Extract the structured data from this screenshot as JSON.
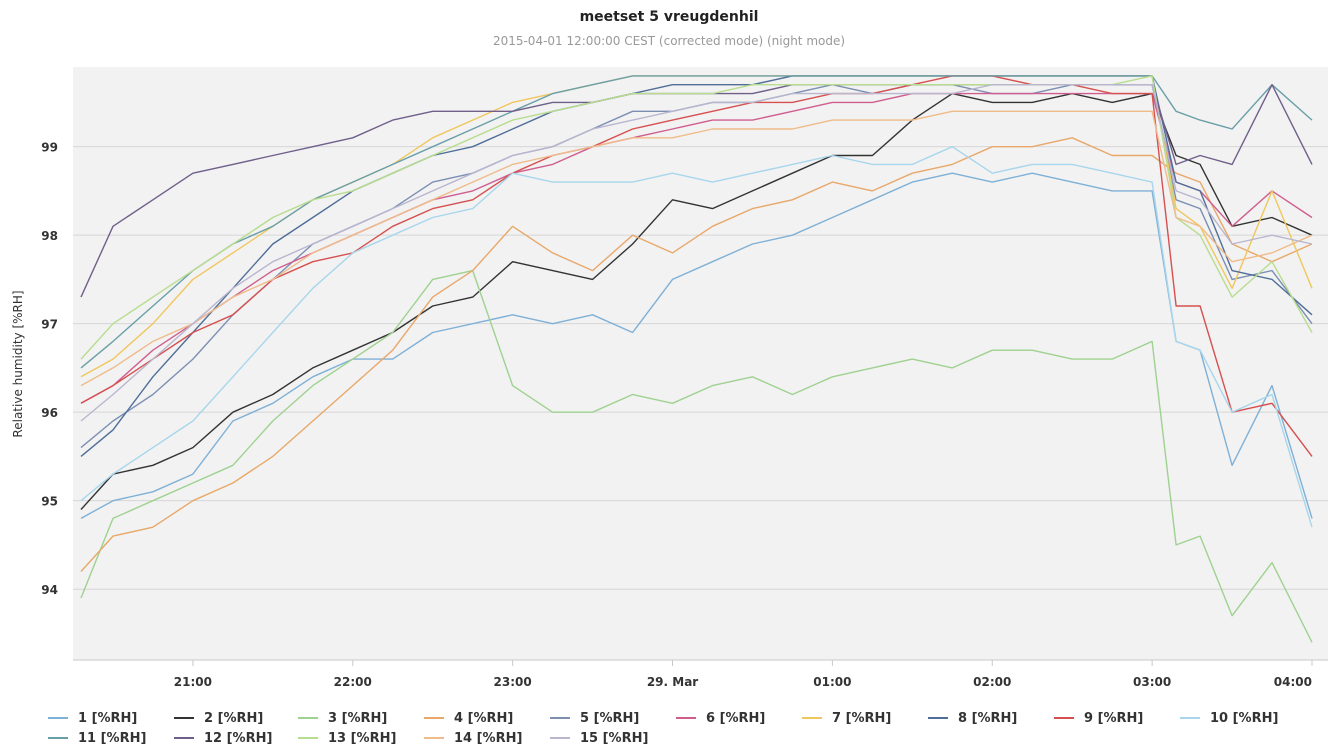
{
  "chart_data": {
    "type": "line",
    "title": "meetset 5 vreugdenhil",
    "subtitle": "2015-04-01 12:00:00 CEST (corrected mode) (night mode)",
    "ylabel": "Relative humidity [%RH]",
    "xlabel": "",
    "x_ticks": [
      {
        "label": "21:00",
        "hour": 21
      },
      {
        "label": "22:00",
        "hour": 22
      },
      {
        "label": "23:00",
        "hour": 23
      },
      {
        "label": "29. Mar",
        "hour": 24
      },
      {
        "label": "01:00",
        "hour": 25
      },
      {
        "label": "02:00",
        "hour": 26
      },
      {
        "label": "03:00",
        "hour": 27
      },
      {
        "label": "04:00",
        "hour": 28
      }
    ],
    "xlim": [
      20.25,
      28.1
    ],
    "ylim": [
      93.2,
      99.9
    ],
    "y_ticks": [
      94,
      95,
      96,
      97,
      98,
      99
    ],
    "grid": true,
    "legend_position": "bottom",
    "x": [
      20.3,
      20.5,
      20.75,
      21.0,
      21.25,
      21.5,
      21.75,
      22.0,
      22.25,
      22.5,
      22.75,
      23.0,
      23.25,
      23.5,
      23.75,
      24.0,
      24.25,
      24.5,
      24.75,
      25.0,
      25.25,
      25.5,
      25.75,
      26.0,
      26.25,
      26.5,
      26.75,
      27.0,
      27.15,
      27.3,
      27.5,
      27.75,
      28.0
    ],
    "series": [
      {
        "name": "1 [%RH]",
        "color": "#7fb0d6",
        "values": [
          94.8,
          95.0,
          95.1,
          95.3,
          95.9,
          96.1,
          96.4,
          96.6,
          96.6,
          96.9,
          97.0,
          97.1,
          97.0,
          97.1,
          96.9,
          97.5,
          97.7,
          97.9,
          98.0,
          98.2,
          98.4,
          98.6,
          98.7,
          98.6,
          98.7,
          98.6,
          98.5,
          98.5,
          96.8,
          96.7,
          95.4,
          96.3,
          94.8
        ]
      },
      {
        "name": "2 [%RH]",
        "color": "#333333",
        "values": [
          94.9,
          95.3,
          95.4,
          95.6,
          96.0,
          96.2,
          96.5,
          96.7,
          96.9,
          97.2,
          97.3,
          97.7,
          97.6,
          97.5,
          97.9,
          98.4,
          98.3,
          98.5,
          98.7,
          98.9,
          98.9,
          99.3,
          99.6,
          99.5,
          99.5,
          99.6,
          99.5,
          99.6,
          98.9,
          98.8,
          98.1,
          98.2,
          98.0
        ]
      },
      {
        "name": "3 [%RH]",
        "color": "#9fd190",
        "values": [
          93.9,
          94.8,
          95.0,
          95.2,
          95.4,
          95.9,
          96.3,
          96.6,
          96.9,
          97.5,
          97.6,
          96.3,
          96.0,
          96.0,
          96.2,
          96.1,
          96.3,
          96.4,
          96.2,
          96.4,
          96.5,
          96.6,
          96.5,
          96.7,
          96.7,
          96.6,
          96.6,
          96.8,
          94.5,
          94.6,
          93.7,
          94.3,
          93.4
        ]
      },
      {
        "name": "4 [%RH]",
        "color": "#e8a86a",
        "values": [
          94.2,
          94.6,
          94.7,
          95.0,
          95.2,
          95.5,
          95.9,
          96.3,
          96.7,
          97.3,
          97.6,
          98.1,
          97.8,
          97.6,
          98.0,
          97.8,
          98.1,
          98.3,
          98.4,
          98.6,
          98.5,
          98.7,
          98.8,
          99.0,
          99.0,
          99.1,
          98.9,
          98.9,
          98.7,
          98.6,
          97.9,
          97.7,
          97.9
        ]
      },
      {
        "name": "5 [%RH]",
        "color": "#7c8fb3",
        "values": [
          95.6,
          95.9,
          96.2,
          96.6,
          97.1,
          97.5,
          97.9,
          98.1,
          98.3,
          98.6,
          98.7,
          98.9,
          99.0,
          99.2,
          99.4,
          99.4,
          99.5,
          99.5,
          99.6,
          99.7,
          99.6,
          99.7,
          99.7,
          99.6,
          99.6,
          99.7,
          99.7,
          99.7,
          98.4,
          98.3,
          97.5,
          97.6,
          97.0
        ]
      },
      {
        "name": "6 [%RH]",
        "color": "#cf5e8f",
        "values": [
          96.1,
          96.3,
          96.7,
          97.0,
          97.3,
          97.6,
          97.8,
          98.0,
          98.2,
          98.4,
          98.5,
          98.7,
          98.8,
          99.0,
          99.1,
          99.2,
          99.3,
          99.3,
          99.4,
          99.5,
          99.5,
          99.6,
          99.6,
          99.6,
          99.6,
          99.6,
          99.6,
          99.6,
          98.6,
          98.5,
          98.1,
          98.5,
          98.2
        ]
      },
      {
        "name": "7 [%RH]",
        "color": "#f0c75e",
        "values": [
          96.4,
          96.6,
          97.0,
          97.5,
          97.8,
          98.1,
          98.4,
          98.6,
          98.8,
          99.1,
          99.3,
          99.5,
          99.6,
          99.7,
          99.8,
          99.8,
          99.8,
          99.8,
          99.8,
          99.8,
          99.8,
          99.8,
          99.8,
          99.8,
          99.8,
          99.8,
          99.8,
          99.8,
          98.3,
          98.1,
          97.4,
          98.5,
          97.4
        ]
      },
      {
        "name": "8 [%RH]",
        "color": "#4f6e98",
        "values": [
          95.5,
          95.8,
          96.4,
          96.9,
          97.4,
          97.9,
          98.2,
          98.5,
          98.7,
          98.9,
          99.0,
          99.2,
          99.4,
          99.5,
          99.6,
          99.7,
          99.7,
          99.7,
          99.8,
          99.8,
          99.8,
          99.8,
          99.8,
          99.8,
          99.8,
          99.8,
          99.8,
          99.8,
          98.6,
          98.5,
          97.6,
          97.5,
          97.1
        ]
      },
      {
        "name": "9 [%RH]",
        "color": "#d65050",
        "values": [
          96.1,
          96.3,
          96.6,
          96.9,
          97.1,
          97.5,
          97.7,
          97.8,
          98.1,
          98.3,
          98.4,
          98.7,
          98.9,
          99.0,
          99.2,
          99.3,
          99.4,
          99.5,
          99.5,
          99.6,
          99.6,
          99.7,
          99.8,
          99.8,
          99.7,
          99.7,
          99.6,
          99.6,
          97.2,
          97.2,
          96.0,
          96.1,
          95.5
        ]
      },
      {
        "name": "10 [%RH]",
        "color": "#a8d6ec",
        "values": [
          95.0,
          95.3,
          95.6,
          95.9,
          96.4,
          96.9,
          97.4,
          97.8,
          98.0,
          98.2,
          98.3,
          98.7,
          98.6,
          98.6,
          98.6,
          98.7,
          98.6,
          98.7,
          98.8,
          98.9,
          98.8,
          98.8,
          99.0,
          98.7,
          98.8,
          98.8,
          98.7,
          98.6,
          96.8,
          96.7,
          96.0,
          96.2,
          94.7
        ]
      },
      {
        "name": "11 [%RH]",
        "color": "#6a9fa8",
        "values": [
          96.5,
          96.8,
          97.2,
          97.6,
          97.9,
          98.1,
          98.4,
          98.6,
          98.8,
          99.0,
          99.2,
          99.4,
          99.6,
          99.7,
          99.8,
          99.8,
          99.8,
          99.8,
          99.8,
          99.8,
          99.8,
          99.8,
          99.8,
          99.8,
          99.8,
          99.8,
          99.8,
          99.8,
          99.4,
          99.3,
          99.2,
          99.7,
          99.3
        ]
      },
      {
        "name": "12 [%RH]",
        "color": "#6f5f8a",
        "values": [
          97.3,
          98.1,
          98.4,
          98.7,
          98.8,
          98.9,
          99.0,
          99.1,
          99.3,
          99.4,
          99.4,
          99.4,
          99.5,
          99.5,
          99.6,
          99.6,
          99.6,
          99.6,
          99.7,
          99.7,
          99.7,
          99.7,
          99.7,
          99.7,
          99.7,
          99.7,
          99.7,
          99.7,
          98.8,
          98.9,
          98.8,
          99.7,
          98.8
        ]
      },
      {
        "name": "13 [%RH]",
        "color": "#b7dd8e",
        "values": [
          96.6,
          97.0,
          97.3,
          97.6,
          97.9,
          98.2,
          98.4,
          98.5,
          98.7,
          98.9,
          99.1,
          99.3,
          99.4,
          99.5,
          99.6,
          99.6,
          99.6,
          99.7,
          99.7,
          99.7,
          99.7,
          99.7,
          99.7,
          99.7,
          99.7,
          99.7,
          99.7,
          99.8,
          98.2,
          98.0,
          97.3,
          97.7,
          96.9
        ]
      },
      {
        "name": "14 [%RH]",
        "color": "#f0bb8a",
        "values": [
          96.3,
          96.5,
          96.8,
          97.0,
          97.3,
          97.5,
          97.8,
          98.0,
          98.2,
          98.4,
          98.6,
          98.8,
          98.9,
          99.0,
          99.1,
          99.1,
          99.2,
          99.2,
          99.2,
          99.3,
          99.3,
          99.3,
          99.4,
          99.4,
          99.4,
          99.4,
          99.4,
          99.4,
          98.2,
          98.1,
          97.7,
          97.8,
          98.0
        ]
      },
      {
        "name": "15 [%RH]",
        "color": "#b9b6cf",
        "values": [
          95.9,
          96.2,
          96.6,
          97.0,
          97.4,
          97.7,
          97.9,
          98.1,
          98.3,
          98.5,
          98.7,
          98.9,
          99.0,
          99.2,
          99.3,
          99.4,
          99.5,
          99.5,
          99.6,
          99.6,
          99.6,
          99.6,
          99.6,
          99.7,
          99.7,
          99.7,
          99.7,
          99.7,
          98.5,
          98.4,
          97.9,
          98.0,
          97.9
        ]
      }
    ]
  }
}
